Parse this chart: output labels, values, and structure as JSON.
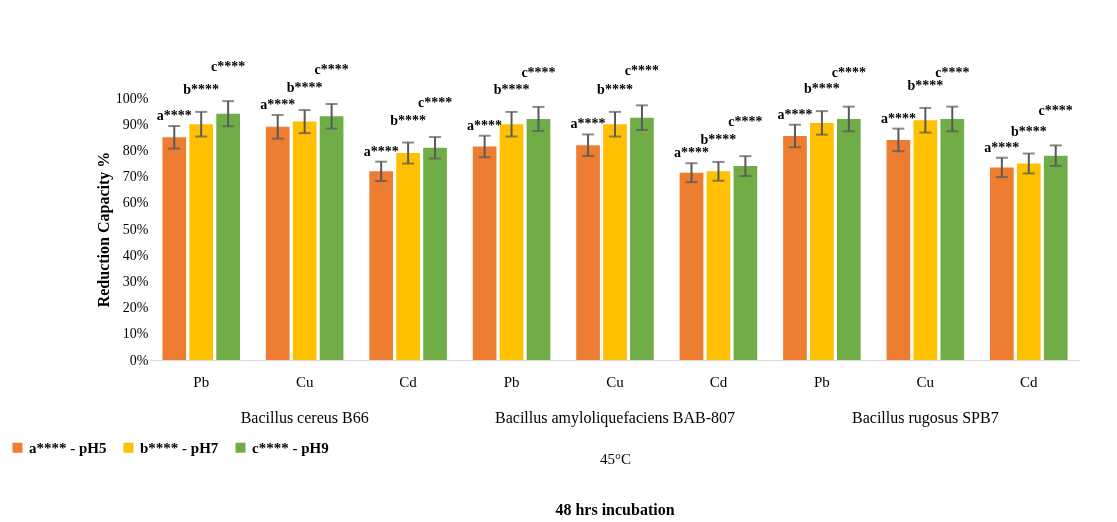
{
  "chart_data": {
    "type": "bar",
    "ylabel": "Reduction Capacity %",
    "xlabel": "45°C",
    "categories": [
      "Pb",
      "Cu",
      "Cd",
      "Pb",
      "Cu",
      "Cd",
      "Pb",
      "Cu",
      "Cd"
    ],
    "series": [
      {
        "name": "a**** - pH5",
        "color": "#ed7d31",
        "values": [
          85,
          89,
          72,
          81.5,
          82,
          71.5,
          85.5,
          84,
          73.5
        ],
        "errors": [
          4.3,
          4.5,
          3.7,
          4.1,
          4.1,
          3.6,
          4.3,
          4.3,
          3.7
        ],
        "value_labels": [
          "a****",
          "a****",
          "a****",
          "a****",
          "a****",
          "a****",
          "a****",
          "a****",
          "a****"
        ]
      },
      {
        "name": "b**** - pH7",
        "color": "#ffc000",
        "values": [
          90,
          91,
          79,
          90,
          90,
          72,
          90.5,
          91.5,
          75
        ],
        "errors": [
          4.7,
          4.4,
          4,
          4.7,
          4.7,
          3.6,
          4.5,
          4.7,
          3.8
        ],
        "value_labels": [
          "b****",
          "b****",
          "b****",
          "b****",
          "b****",
          "b****",
          "b****",
          "b****",
          "b****"
        ]
      },
      {
        "name": "c**** - pH9",
        "color": "#70ad47",
        "values": [
          94,
          93,
          81,
          92,
          92.5,
          74,
          92,
          92,
          78
        ],
        "errors": [
          4.8,
          4.7,
          4.1,
          4.6,
          4.7,
          3.8,
          4.7,
          4.7,
          3.9
        ],
        "value_labels": [
          "c****",
          "c****",
          "c****",
          "c****",
          "c****",
          "c****",
          "c****",
          "c****",
          "c****"
        ]
      }
    ],
    "ylim": [
      0,
      100
    ],
    "yticks": [
      {
        "value": 0,
        "label": "0%"
      },
      {
        "value": 10,
        "label": "10%"
      },
      {
        "value": 20,
        "label": "20%"
      },
      {
        "value": 30,
        "label": "30%"
      },
      {
        "value": 40,
        "label": "40%"
      },
      {
        "value": 50,
        "label": "50%"
      },
      {
        "value": 60,
        "label": "60%"
      },
      {
        "value": 70,
        "label": "70%"
      },
      {
        "value": 80,
        "label": "80%"
      },
      {
        "value": 90,
        "label": "90%"
      },
      {
        "value": 100,
        "label": "100%"
      }
    ],
    "grid": false,
    "legend": "bottom left",
    "annotations": [
      "Bacillus cereus B66",
      "Bacillus amyloliquefaciens BAB-807",
      "Bacillus rugosus SPB7",
      "48 hrs incubation"
    ]
  }
}
